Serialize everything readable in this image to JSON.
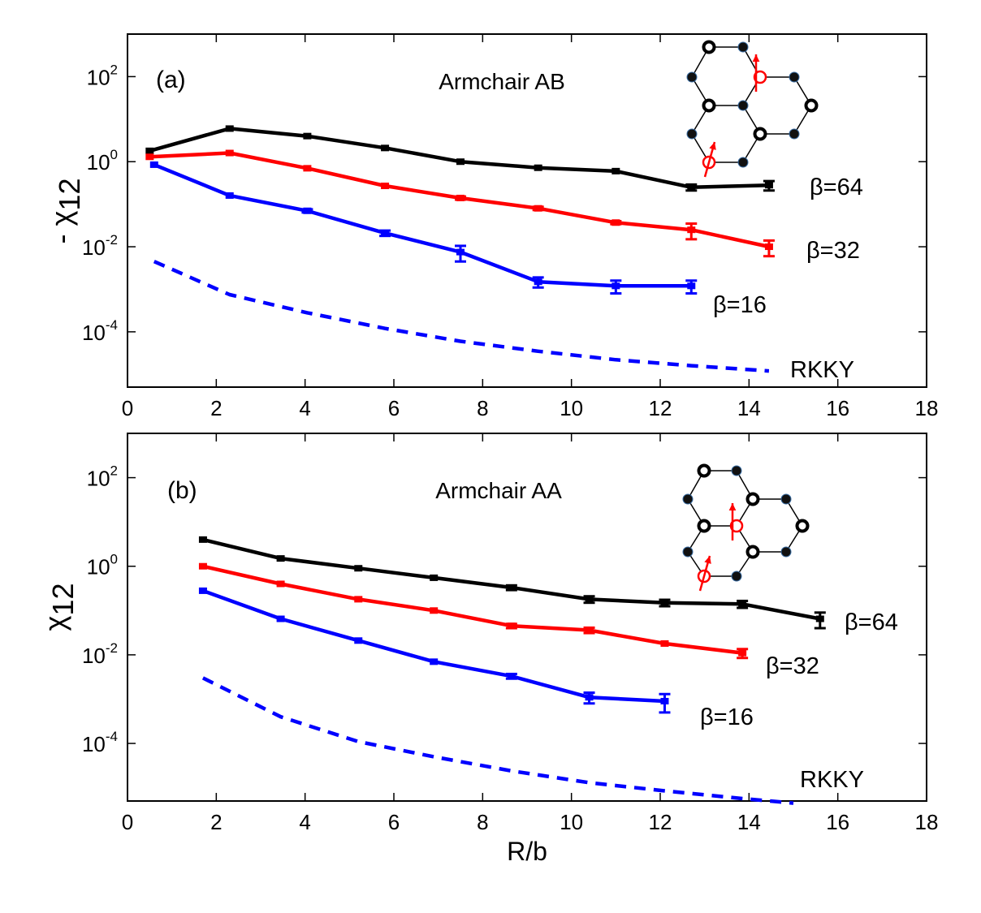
{
  "chart_data": [
    {
      "type": "line",
      "panel_label": "(a)",
      "title": "Armchair AB",
      "ylabel_prefix": "- ",
      "ylabel_symbol": "χ",
      "ylabel_sub": "12",
      "xlabel": "",
      "xlim": [
        0,
        18
      ],
      "ylim_log10": [
        -5.3,
        3
      ],
      "y_scale": "log",
      "xticks": [
        "0",
        "2",
        "4",
        "6",
        "8",
        "10",
        "12",
        "14",
        "16",
        "18"
      ],
      "yticks": [
        {
          "base": "10",
          "exp": "2"
        },
        {
          "base": "10",
          "exp": "0"
        },
        {
          "base": "10",
          "exp": "-2"
        },
        {
          "base": "10",
          "exp": "-4"
        }
      ],
      "inset": "armchair-ab-lattice",
      "series": [
        {
          "name": "β=64",
          "color": "#000000",
          "style": "solid",
          "x": [
            0.5,
            2.3,
            4.05,
            5.8,
            7.5,
            9.25,
            11.0,
            12.7,
            14.45
          ],
          "y": [
            1.8,
            6.0,
            4.0,
            2.1,
            1.0,
            0.72,
            0.6,
            0.25,
            0.28
          ],
          "err": [
            0,
            0,
            0,
            0,
            0,
            0,
            0,
            0.04,
            0.07
          ]
        },
        {
          "name": "β=32",
          "color": "#ff0000",
          "style": "solid",
          "x": [
            0.5,
            2.3,
            4.05,
            5.8,
            7.5,
            9.25,
            11.0,
            12.7,
            14.45
          ],
          "y": [
            1.3,
            1.6,
            0.7,
            0.27,
            0.14,
            0.08,
            0.037,
            0.025,
            0.01
          ],
          "err": [
            0,
            0,
            0,
            0,
            0.012,
            0.007,
            0.003,
            0.01,
            0.004
          ]
        },
        {
          "name": "β=16",
          "color": "#0000ff",
          "style": "solid",
          "x": [
            0.6,
            2.3,
            4.05,
            5.8,
            7.5,
            9.25,
            11.0,
            12.7
          ],
          "y": [
            0.85,
            0.16,
            0.07,
            0.021,
            0.0075,
            0.0015,
            0.0012,
            0.0012
          ],
          "err": [
            0,
            0,
            0.006,
            0.003,
            0.003,
            0.0004,
            0.0004,
            0.0004
          ]
        },
        {
          "name": "RKKY",
          "color": "#0000ff",
          "style": "dashed",
          "x": [
            0.6,
            2.3,
            4.05,
            5.8,
            7.5,
            9.25,
            11.0,
            12.7,
            14.45
          ],
          "y": [
            0.0045,
            0.00075,
            0.00028,
            0.00012,
            6e-05,
            3.5e-05,
            2.2e-05,
            1.6e-05,
            1.2e-05
          ],
          "err": [
            0,
            0,
            0,
            0,
            0,
            0,
            0,
            0,
            0
          ]
        }
      ]
    },
    {
      "type": "line",
      "panel_label": "(b)",
      "title": "Armchair AA",
      "ylabel_prefix": "",
      "ylabel_symbol": "χ",
      "ylabel_sub": "12",
      "xlabel": "R/b",
      "xlim": [
        0,
        18
      ],
      "ylim_log10": [
        -5.3,
        3
      ],
      "y_scale": "log",
      "xticks": [
        "0",
        "2",
        "4",
        "6",
        "8",
        "10",
        "12",
        "14",
        "16",
        "18"
      ],
      "yticks": [
        {
          "base": "10",
          "exp": "2"
        },
        {
          "base": "10",
          "exp": "0"
        },
        {
          "base": "10",
          "exp": "-2"
        },
        {
          "base": "10",
          "exp": "-4"
        }
      ],
      "inset": "armchair-aa-lattice",
      "series": [
        {
          "name": "β=64",
          "color": "#000000",
          "style": "solid",
          "x": [
            1.7,
            3.45,
            5.2,
            6.9,
            8.65,
            10.4,
            12.1,
            13.85,
            15.6
          ],
          "y": [
            4.0,
            1.5,
            0.9,
            0.55,
            0.33,
            0.18,
            0.15,
            0.14,
            0.065
          ],
          "err": [
            0,
            0,
            0,
            0,
            0.04,
            0.03,
            0.025,
            0.025,
            0.025
          ]
        },
        {
          "name": "β=32",
          "color": "#ff0000",
          "style": "solid",
          "x": [
            1.7,
            3.45,
            5.2,
            6.9,
            8.65,
            10.4,
            12.1,
            13.85
          ],
          "y": [
            1.0,
            0.4,
            0.18,
            0.1,
            0.045,
            0.036,
            0.018,
            0.011
          ],
          "err": [
            0,
            0,
            0,
            0,
            0.005,
            0.005,
            0,
            0.0025
          ]
        },
        {
          "name": "β=16",
          "color": "#0000ff",
          "style": "solid",
          "x": [
            1.7,
            3.45,
            5.2,
            6.9,
            8.65,
            10.4,
            12.1
          ],
          "y": [
            0.28,
            0.065,
            0.021,
            0.007,
            0.0033,
            0.0011,
            0.0009
          ],
          "err": [
            0,
            0,
            0,
            0,
            0.0004,
            0.0003,
            0.0004
          ]
        },
        {
          "name": "RKKY",
          "color": "#0000ff",
          "style": "dashed",
          "x": [
            1.7,
            3.45,
            5.2,
            6.9,
            8.65,
            10.4,
            12.1,
            13.85,
            15.0
          ],
          "y": [
            0.003,
            0.0004,
            0.00011,
            5e-05,
            2.4e-05,
            1.3e-05,
            8.5e-06,
            5.7e-06,
            4.5e-06
          ],
          "err": [
            0,
            0,
            0,
            0,
            0,
            0,
            0,
            0,
            0
          ]
        }
      ]
    }
  ]
}
